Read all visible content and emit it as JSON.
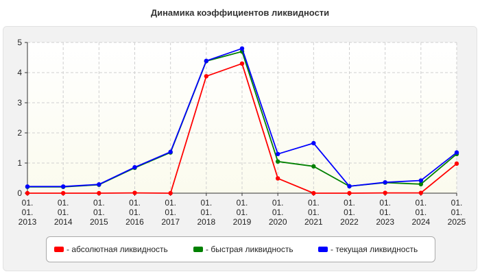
{
  "title": "Динамика коэффициентов ликвидности",
  "chart_data": {
    "type": "line",
    "title": "Динамика коэффициентов ликвидности",
    "xlabel": "",
    "ylabel": "",
    "ylim": [
      0,
      5
    ],
    "yticks": [
      "0",
      "1",
      "2",
      "3",
      "4",
      "5"
    ],
    "grid": true,
    "legend_position": "bottom",
    "categories": [
      [
        "01.",
        "01.",
        "2013"
      ],
      [
        "01.",
        "01.",
        "2014"
      ],
      [
        "01.",
        "01.",
        "2015"
      ],
      [
        "01.",
        "01.",
        "2016"
      ],
      [
        "01.",
        "01.",
        "2017"
      ],
      [
        "01.",
        "01.",
        "2018"
      ],
      [
        "01.",
        "01.",
        "2019"
      ],
      [
        "01.",
        "01.",
        "2020"
      ],
      [
        "01.",
        "01.",
        "2021"
      ],
      [
        "01.",
        "01.",
        "2022"
      ],
      [
        "01.",
        "01.",
        "2023"
      ],
      [
        "01.",
        "01.",
        "2024"
      ],
      [
        "01.",
        "01.",
        "2025"
      ]
    ],
    "series": [
      {
        "name": "- абсолютная ликвидность",
        "color": "#ff0000",
        "values": [
          0,
          0,
          0,
          0.01,
          0,
          3.88,
          4.3,
          0.49,
          0,
          0,
          0.01,
          0.01,
          0.98
        ]
      },
      {
        "name": "- быстрая ликвидность",
        "color": "#008000",
        "values": [
          0.21,
          0.21,
          0.28,
          0.84,
          1.35,
          4.38,
          4.7,
          1.05,
          0.89,
          0.23,
          0.35,
          0.3,
          1.3
        ]
      },
      {
        "name": "- текущая ликвидность",
        "color": "#0000ff",
        "values": [
          0.22,
          0.22,
          0.29,
          0.86,
          1.37,
          4.39,
          4.8,
          1.3,
          1.66,
          0.23,
          0.36,
          0.42,
          1.35
        ]
      }
    ]
  }
}
